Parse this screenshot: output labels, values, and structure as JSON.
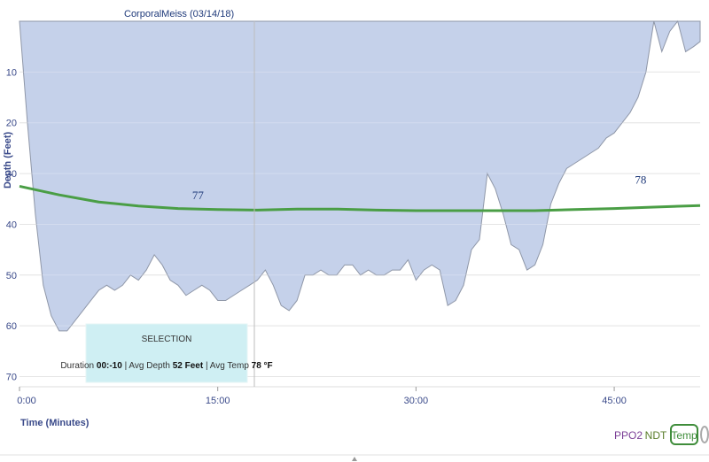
{
  "chart_data": {
    "type": "area",
    "title": "CorporalMeiss (03/14/18)",
    "xlabel": "Time (Minutes)",
    "ylabel": "Depth (Feet)",
    "x_ticks": [
      "0:00",
      "15:00",
      "30:00",
      "45:00"
    ],
    "y_ticks": [
      "10",
      "20",
      "30",
      "40",
      "50",
      "60",
      "70"
    ],
    "xlim": [
      0,
      51.5
    ],
    "ylim": [
      0,
      72
    ],
    "y_inverted": true,
    "grid": true,
    "series": [
      {
        "kind": "depth-area",
        "color": "#c5d1ea",
        "x": [
          0,
          0.6,
          1.2,
          1.8,
          2.4,
          3.0,
          3.6,
          4.2,
          4.8,
          5.4,
          6.0,
          6.6,
          7.2,
          7.8,
          8.4,
          9.0,
          9.6,
          10.2,
          10.8,
          11.4,
          12.0,
          12.6,
          13.2,
          13.8,
          14.4,
          15.0,
          15.6,
          16.2,
          16.8,
          17.4,
          18.0,
          18.6,
          19.2,
          19.8,
          20.4,
          21.0,
          21.6,
          22.2,
          22.8,
          23.4,
          24.0,
          24.6,
          25.2,
          25.8,
          26.4,
          27.0,
          27.6,
          28.2,
          28.8,
          29.4,
          30.0,
          30.6,
          31.2,
          31.8,
          32.4,
          33.0,
          33.6,
          34.2,
          34.8,
          35.4,
          36.0,
          36.6,
          37.2,
          37.8,
          38.4,
          39.0,
          39.6,
          40.2,
          40.8,
          41.4,
          42.0,
          42.6,
          43.2,
          43.8,
          44.4,
          45.0,
          45.6,
          46.2,
          46.8,
          47.4,
          48.0,
          48.6,
          49.2,
          49.8,
          50.4,
          51.0,
          51.5
        ],
        "y": [
          0,
          20,
          38,
          52,
          58,
          61,
          61,
          59,
          57,
          55,
          53,
          52,
          53,
          52,
          50,
          51,
          49,
          46,
          48,
          51,
          52,
          54,
          53,
          52,
          53,
          55,
          55,
          54,
          53,
          52,
          51,
          49,
          52,
          56,
          57,
          55,
          50,
          50,
          49,
          50,
          50,
          48,
          48,
          50,
          49,
          50,
          50,
          49,
          49,
          47,
          51,
          49,
          48,
          49,
          56,
          55,
          52,
          45,
          43,
          30,
          33,
          38,
          44,
          45,
          49,
          48,
          44,
          36,
          32,
          29,
          28,
          27,
          26,
          25,
          23,
          22,
          20,
          18,
          15,
          10,
          0,
          6,
          2,
          0,
          6,
          5,
          4
        ],
        "annotations": [
          {
            "x": 13.5,
            "y": 35,
            "text": "77"
          },
          {
            "x": 47.0,
            "y": 32,
            "text": "78"
          }
        ]
      },
      {
        "kind": "temperature-line",
        "color": "#4a9e45",
        "x": [
          0,
          3,
          6,
          9,
          12,
          15,
          18,
          21,
          24,
          27,
          30,
          33,
          36,
          39,
          42,
          45,
          48,
          51.5
        ],
        "y": [
          32.5,
          34.2,
          35.6,
          36.4,
          36.9,
          37.1,
          37.2,
          37.0,
          37.0,
          37.2,
          37.3,
          37.3,
          37.3,
          37.3,
          37.1,
          36.9,
          36.6,
          36.3
        ]
      }
    ]
  },
  "selection": {
    "title": "SELECTION",
    "duration_label": "Duration",
    "duration_value": "00:-10",
    "avg_depth_label": "Avg Depth",
    "avg_depth_value": "52 Feet",
    "avg_temp_label": "Avg Temp",
    "avg_temp_value": "78 °F",
    "bg_color": "#cfeff3"
  },
  "legend": {
    "items": [
      {
        "label": "PPO2",
        "color": "#7b3f96"
      },
      {
        "label": "NDT",
        "color": "#5a7d2a"
      },
      {
        "label": "Temp",
        "color": "#3f8d3b"
      }
    ]
  },
  "colors": {
    "grid": "#dcdcdc",
    "cursor": "#bdbdbd"
  }
}
